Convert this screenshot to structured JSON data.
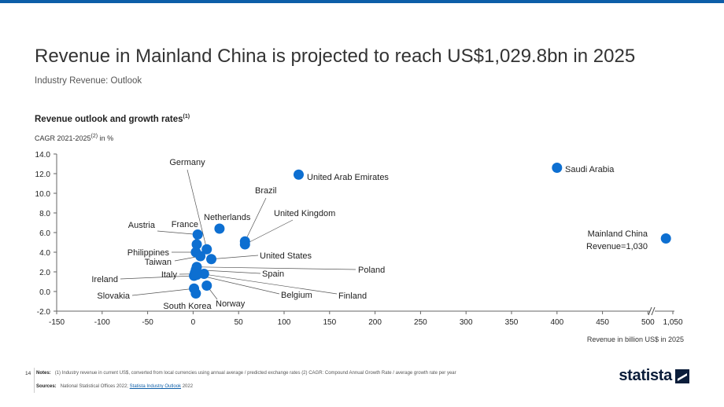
{
  "header": {
    "title": "Revenue in Mainland China is projected to reach US$1,029.8bn in 2025",
    "subtitle": "Industry Revenue: Outlook",
    "section_title": "Revenue outlook and growth rates",
    "section_title_sup": "(1)",
    "ylabel_pre": "CAGR 2021-2025",
    "ylabel_sup": "(2)",
    "ylabel_post": " in %",
    "xlabel": "Revenue in billion US$ in 2025"
  },
  "chart_data": {
    "type": "scatter",
    "title": "Revenue in Mainland China is projected to reach US$1,029.8bn in 2025",
    "xlabel": "Revenue in billion US$ in 2025",
    "ylabel": "CAGR 2021-2025 in %",
    "xlim": [
      -150,
      1050
    ],
    "ylim": [
      -2,
      14
    ],
    "x_axis_break": [
      500,
      1050
    ],
    "x_ticks": [
      "-150",
      "-100",
      "-50",
      "0",
      "50",
      "100",
      "150",
      "200",
      "250",
      "300",
      "350",
      "400",
      "450",
      "500",
      "1,050"
    ],
    "y_ticks": [
      "-2.0",
      "0.0",
      "2.0",
      "4.0",
      "6.0",
      "8.0",
      "10.0",
      "12.0",
      "14.0"
    ],
    "grid": false,
    "color": "#0d6fd1",
    "points": [
      {
        "label": "Saudi Arabia",
        "x": 400,
        "y": 12.6
      },
      {
        "label": "United Arab Emirates",
        "x": 116,
        "y": 11.9
      },
      {
        "label": "Mainland China",
        "label2": "Revenue=1,030",
        "x": 1030,
        "y": 5.4
      },
      {
        "label": "Brazil",
        "x": 57,
        "y": 5.1
      },
      {
        "label": "United Kingdom",
        "x": 57,
        "y": 4.8
      },
      {
        "label": "Netherlands",
        "x": 29,
        "y": 6.4
      },
      {
        "label": "Austria",
        "x": 5,
        "y": 5.8
      },
      {
        "label": "France",
        "x": 4,
        "y": 4.8
      },
      {
        "label": "Germany",
        "x": 15,
        "y": 4.3
      },
      {
        "label": "Philippines",
        "x": 3,
        "y": 4.0
      },
      {
        "label": "Taiwan",
        "x": 8,
        "y": 3.6
      },
      {
        "label": "United States",
        "x": 20,
        "y": 3.3
      },
      {
        "label": "Poland",
        "x": 4,
        "y": 2.5
      },
      {
        "label": "Spain",
        "x": 3,
        "y": 2.2
      },
      {
        "label": "Italy",
        "x": 12,
        "y": 1.8
      },
      {
        "label": "Ireland",
        "x": 1,
        "y": 1.6
      },
      {
        "label": "Finland",
        "x": 2,
        "y": 1.9
      },
      {
        "label": "Belgium",
        "x": 4,
        "y": 1.7
      },
      {
        "label": "Norway",
        "x": 15,
        "y": 0.6
      },
      {
        "label": "Slovakia",
        "x": 1,
        "y": 0.3
      },
      {
        "label": "South Korea",
        "x": 3,
        "y": -0.2
      }
    ]
  },
  "footer": {
    "page_number": "14",
    "notes_label": "Notes:",
    "notes_text": "(1) Industry revenue in current US$, converted from local currencies using annual average / predicted exchange rates (2) CAGR: Compound Annual Growth Rate / average growth rate per year",
    "sources_label": "Sources:",
    "sources_text": "National Statistical Offices 2022;",
    "sources_link": "Statista Industry Outlook",
    "sources_year": "2022",
    "logo_text": "statista"
  }
}
